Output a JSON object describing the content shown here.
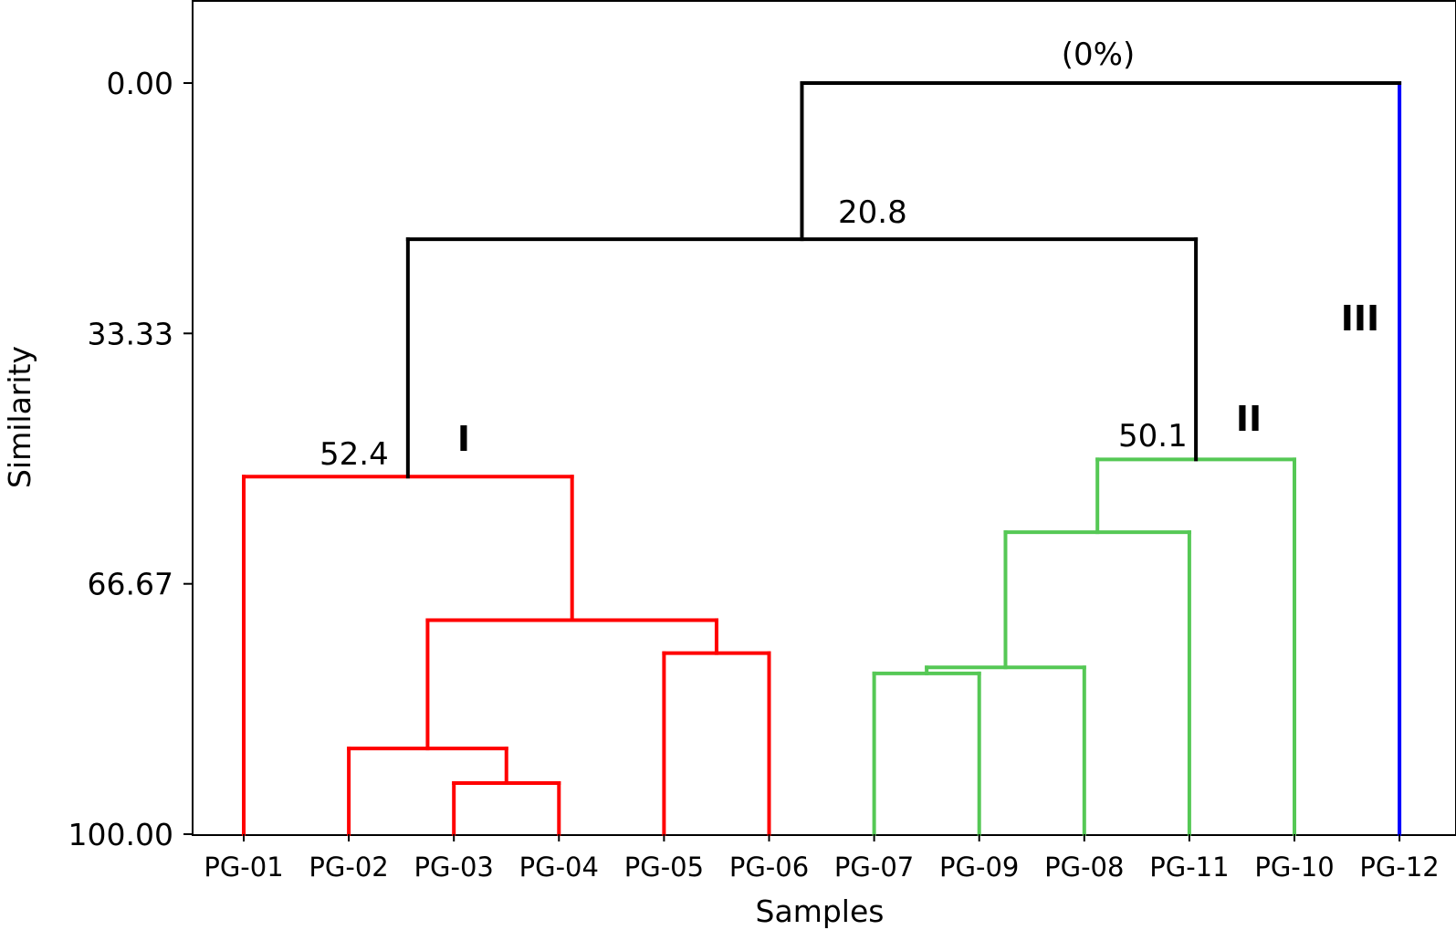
{
  "chart_data": {
    "type": "dendrogram",
    "xlabel": "Samples",
    "ylabel": "Similarity",
    "ylim": [
      0,
      100
    ],
    "yticks": [
      "0.00",
      "33.33",
      "66.67",
      "100.00"
    ],
    "ytick_values": [
      0,
      33.33,
      66.67,
      100
    ],
    "leaves": [
      "PG-01",
      "PG-02",
      "PG-03",
      "PG-04",
      "PG-05",
      "PG-06",
      "PG-07",
      "PG-09",
      "PG-08",
      "PG-11",
      "PG-10",
      "PG-12"
    ],
    "colors": {
      "I": "#ff0000",
      "II": "#55c855",
      "III": "#0000ff",
      "root": "#000000"
    },
    "merges": [
      {
        "id": "m1",
        "a": "PG-03",
        "b": "PG-04",
        "similarity": 93.2,
        "color": "I"
      },
      {
        "id": "m2",
        "a": "PG-02",
        "b": "m1",
        "similarity": 88.6,
        "color": "I"
      },
      {
        "id": "m3",
        "a": "PG-05",
        "b": "PG-06",
        "similarity": 75.9,
        "color": "I"
      },
      {
        "id": "m4",
        "a": "m2",
        "b": "m3",
        "similarity": 71.5,
        "color": "I"
      },
      {
        "id": "m5",
        "a": "PG-01",
        "b": "m4",
        "similarity": 52.4,
        "color": "I"
      },
      {
        "id": "m6",
        "a": "PG-07",
        "b": "PG-09",
        "similarity": 78.6,
        "color": "II"
      },
      {
        "id": "m7",
        "a": "m6",
        "b": "PG-08",
        "similarity": 77.8,
        "color": "II"
      },
      {
        "id": "m8",
        "a": "m7",
        "b": "PG-11",
        "similarity": 59.8,
        "color": "II"
      },
      {
        "id": "m9",
        "a": "m8",
        "b": "PG-10",
        "similarity": 50.1,
        "color": "II"
      },
      {
        "id": "m10",
        "a": "m5",
        "b": "m9",
        "similarity": 20.8,
        "color": "root"
      },
      {
        "id": "m11",
        "a": "m10",
        "b": "PG-12",
        "similarity": 0,
        "color": "root",
        "leaf_color": "III"
      }
    ],
    "annotations": {
      "root": "(0%)",
      "n_20_8": "20.8",
      "n_52_4": "52.4",
      "n_50_1": "50.1",
      "cluster_I": "I",
      "cluster_II": "II",
      "cluster_III": "III"
    }
  }
}
